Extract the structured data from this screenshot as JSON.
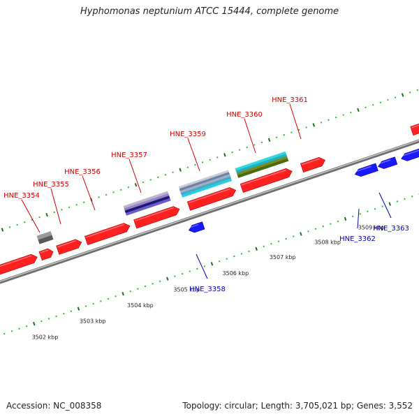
{
  "title": "Hyphomonas neptunium ATCC 15444, complete genome",
  "footer": {
    "accession": "Accession: NC_008358",
    "topology": "Topology: circular; Length: 3,705,021 bp; Genes: 3,552"
  },
  "colors": {
    "forward_gene": "#ff2020",
    "reverse_gene": "#1a1aff",
    "backbone": "#9a9a9a",
    "tick_dark": "#1f6b1f",
    "tick_light": "#2db82d",
    "label_forward": "#cc0000",
    "label_reverse": "#0000aa"
  },
  "kbp_labels": [
    "3502 kbp",
    "3503 kbp",
    "3504 kbp",
    "3505 kbp",
    "3506 kbp",
    "3507 kbp",
    "3508 kbp",
    "3509 kbp"
  ],
  "gene_labels": {
    "forward": [
      "HNE_3354",
      "HNE_3355",
      "HNE_3356",
      "HNE_3357",
      "HNE_3359",
      "HNE_3360",
      "HNE_3361"
    ],
    "reverse": [
      "HNE_3358",
      "HNE_3362",
      "HNE_3363"
    ]
  }
}
